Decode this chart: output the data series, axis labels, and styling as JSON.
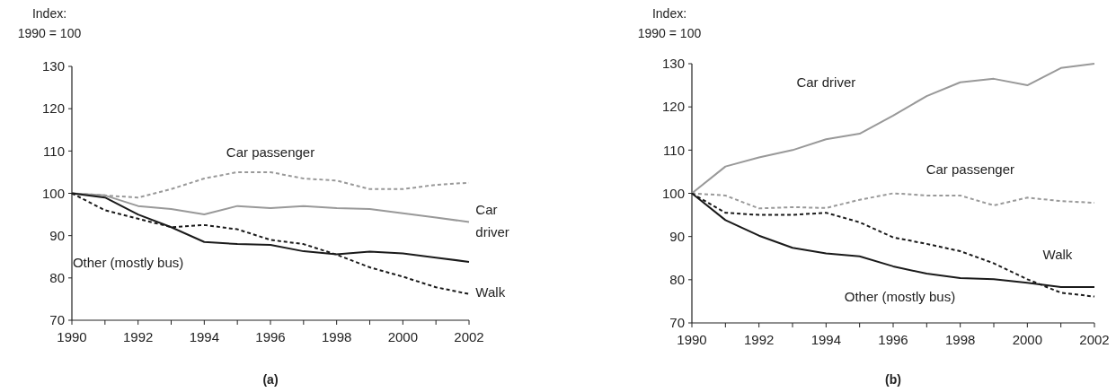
{
  "chart_data": [
    {
      "type": "line",
      "title": "(a)",
      "ylabel": "Index:\n1990 = 100",
      "x": [
        1990,
        1991,
        1992,
        1993,
        1994,
        1995,
        1996,
        1997,
        1998,
        1999,
        2000,
        2001,
        2002
      ],
      "xlim": [
        1990,
        2002
      ],
      "xticks": [
        1990,
        {
          "value": 1991,
          "label": null
        },
        1992,
        {
          "value": 1993,
          "label": null
        },
        1994,
        {
          "value": 1995,
          "label": null
        },
        1996,
        {
          "value": 1997,
          "label": null
        },
        1998,
        {
          "value": 1999,
          "label": null
        },
        2000,
        {
          "value": 2001,
          "label": null
        },
        2002
      ],
      "ylim": [
        70,
        130
      ],
      "yticks": [
        70,
        80,
        90,
        100,
        110,
        120,
        130
      ],
      "grid": false,
      "series": [
        {
          "name": "Car passenger",
          "color": "#999999",
          "line_style": "dashed",
          "values": [
            100,
            99.5,
            99,
            101,
            103.5,
            105,
            105,
            103.5,
            103,
            101,
            101,
            102,
            102.5
          ]
        },
        {
          "name": "Car driver",
          "color": "#999999",
          "line_style": "solid",
          "values": [
            100,
            99.5,
            97,
            96.3,
            95,
            97,
            96.5,
            97,
            96.5,
            96.3,
            95.3,
            94.3,
            93.2
          ]
        },
        {
          "name": "Other (mostly bus)",
          "color": "#1a1a1a",
          "line_style": "solid",
          "values": [
            100,
            99,
            95,
            92,
            88.5,
            88,
            87.8,
            86.3,
            85.6,
            86.2,
            85.8,
            84.8,
            83.8
          ]
        },
        {
          "name": "Walk",
          "color": "#1a1a1a",
          "line_style": "dashed",
          "values": [
            100,
            96,
            94,
            92,
            92.5,
            91.5,
            89,
            88,
            85.5,
            82.5,
            80.3,
            77.8,
            76.2
          ]
        }
      ]
    },
    {
      "type": "line",
      "title": "(b)",
      "ylabel": "Index:\n1990 = 100",
      "x": [
        1990,
        1991,
        1992,
        1993,
        1994,
        1995,
        1996,
        1997,
        1998,
        1999,
        2000,
        2001,
        2002
      ],
      "xlim": [
        1990,
        2002
      ],
      "xticks": [
        1990,
        {
          "value": 1991,
          "label": null
        },
        1992,
        {
          "value": 1993,
          "label": null
        },
        1994,
        {
          "value": 1995,
          "label": null
        },
        1996,
        {
          "value": 1997,
          "label": null
        },
        1998,
        {
          "value": 1999,
          "label": null
        },
        2000,
        {
          "value": 2001,
          "label": null
        },
        2002
      ],
      "ylim": [
        70,
        130
      ],
      "yticks": [
        70,
        80,
        90,
        100,
        110,
        120,
        130
      ],
      "grid": false,
      "series": [
        {
          "name": "Car passenger",
          "color": "#999999",
          "line_style": "dashed",
          "values": [
            100,
            99.5,
            96.5,
            96.8,
            96.6,
            98.5,
            100,
            99.5,
            99.5,
            97.2,
            99,
            98.2,
            97.8
          ]
        },
        {
          "name": "Car driver",
          "color": "#999999",
          "line_style": "solid",
          "values": [
            100,
            106.2,
            108.3,
            110,
            112.5,
            113.8,
            118,
            122.5,
            125.7,
            126.5,
            125,
            129,
            130
          ]
        },
        {
          "name": "Other (mostly bus)",
          "color": "#1a1a1a",
          "line_style": "solid",
          "values": [
            100,
            93.8,
            90.2,
            87.4,
            86.1,
            85.4,
            83.1,
            81.4,
            80.4,
            80.1,
            79.3,
            78.3,
            78.3
          ]
        },
        {
          "name": "Walk",
          "color": "#1a1a1a",
          "line_style": "dashed",
          "values": [
            100,
            95.5,
            95,
            95,
            95.5,
            93.3,
            89.8,
            88.3,
            86.6,
            83.8,
            80.1,
            77.0,
            76.1
          ]
        }
      ]
    }
  ]
}
